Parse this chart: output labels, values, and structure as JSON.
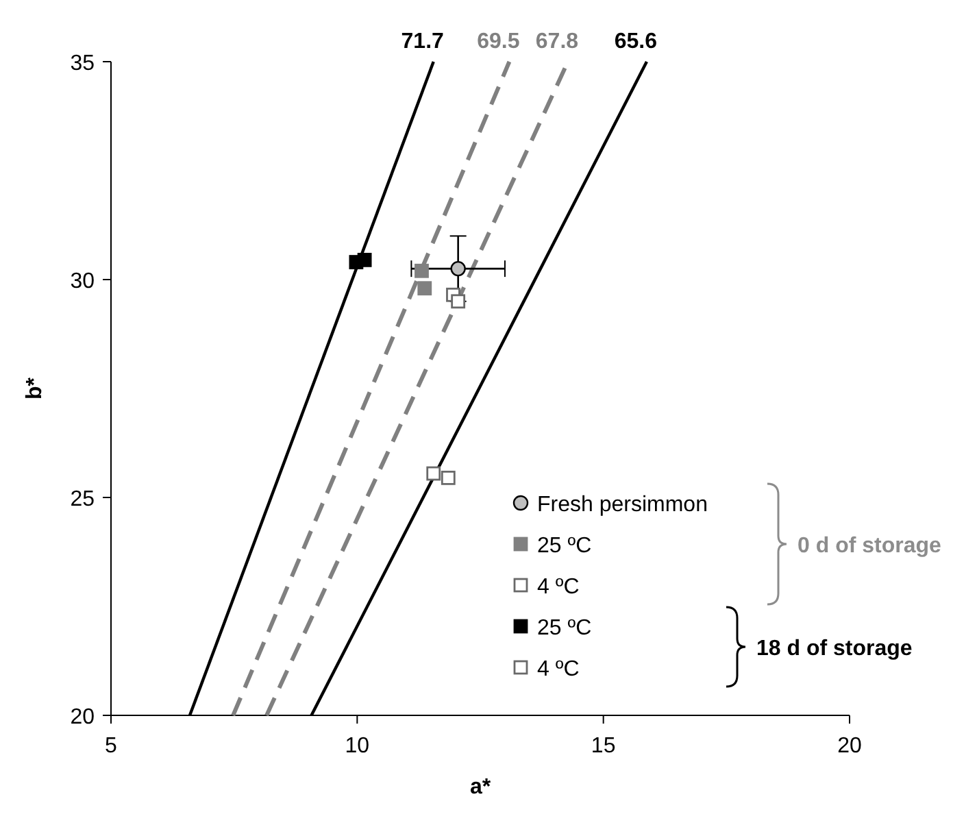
{
  "chart_data": {
    "type": "scatter",
    "xlabel": "a*",
    "ylabel": "b*",
    "xlim": [
      5,
      20
    ],
    "ylim": [
      20,
      35
    ],
    "xticks": [
      5,
      10,
      15,
      20
    ],
    "yticks": [
      20,
      25,
      30,
      35
    ],
    "grid": false,
    "legend": "right",
    "annotations": [
      "0 d of storage",
      "18 d of storage"
    ],
    "series": [
      {
        "type": "line",
        "name": "71.7",
        "color": "#000000",
        "line_style": "solid",
        "x": [
          6.6,
          11.55
        ],
        "values": [
          20,
          35
        ]
      },
      {
        "type": "line",
        "name": "69.5",
        "color": "#808080",
        "line_style": "dashed",
        "x": [
          7.48,
          13.09
        ],
        "values": [
          20,
          35
        ]
      },
      {
        "type": "line",
        "name": "67.8",
        "color": "#808080",
        "line_style": "dashed",
        "x": [
          8.16,
          14.28
        ],
        "values": [
          20,
          35
        ]
      },
      {
        "type": "line",
        "name": "65.6",
        "color": "#000000",
        "line_style": "solid",
        "x": [
          9.07,
          15.88
        ],
        "values": [
          20,
          35
        ]
      },
      {
        "name": "Fresh persimmon",
        "color": "#bfbfbf",
        "marker": "circle",
        "x": [
          12.05
        ],
        "values": [
          30.25
        ],
        "errors": [
          0.75
        ],
        "xerrors": [
          0.95
        ]
      },
      {
        "name": "25 ºC",
        "color": "#808080",
        "marker": "square",
        "x": [
          11.31,
          11.37
        ],
        "values": [
          30.2,
          29.8
        ]
      },
      {
        "name": "4 ºC",
        "color": "#ffffff",
        "marker": "square",
        "x": [
          11.95,
          12.05
        ],
        "values": [
          29.65,
          29.5
        ]
      },
      {
        "name": "25 ºC",
        "color": "#000000",
        "marker": "square",
        "x": [
          9.98,
          10.15
        ],
        "values": [
          30.4,
          30.45
        ]
      },
      {
        "name": "4 ºC",
        "color": "#ffffff",
        "marker": "square",
        "x": [
          11.55,
          11.85
        ],
        "values": [
          25.55,
          25.45
        ]
      }
    ]
  }
}
